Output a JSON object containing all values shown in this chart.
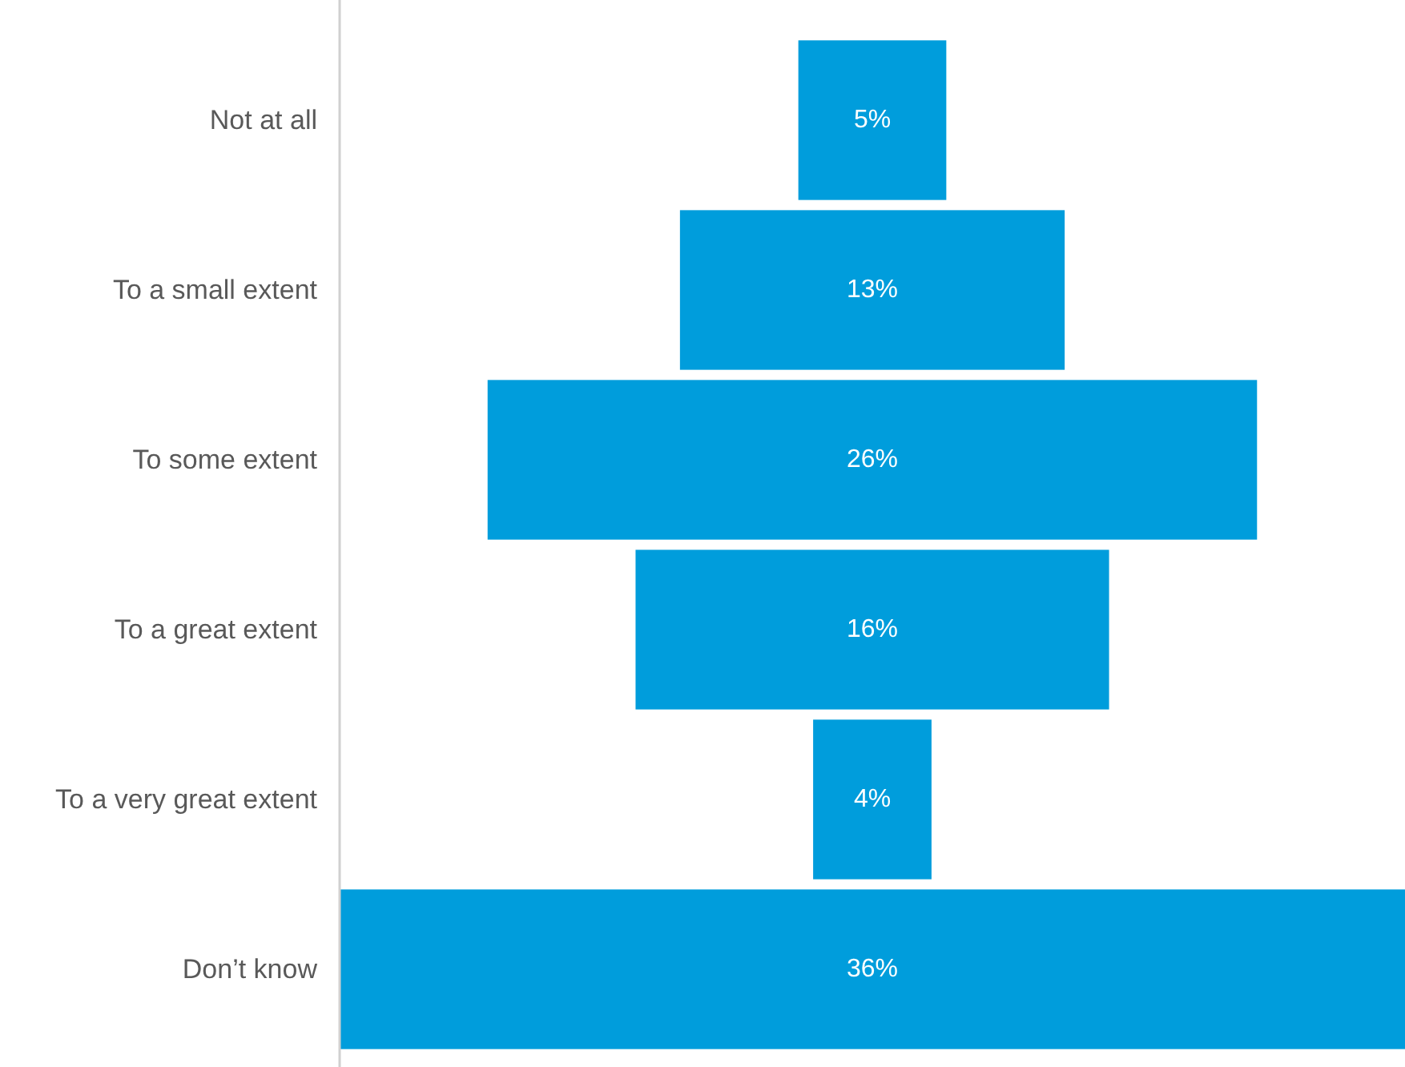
{
  "chart_data": {
    "type": "other",
    "categories": [
      "Not at all",
      "To a small extent",
      "To some extent",
      "To a great extent",
      "To a very great extent",
      "Don’t know"
    ],
    "values": [
      5,
      13,
      26,
      16,
      4,
      36
    ],
    "value_labels": [
      "5%",
      "13%",
      "26%",
      "16%",
      "4%",
      "36%"
    ],
    "color": "#009ddc"
  }
}
